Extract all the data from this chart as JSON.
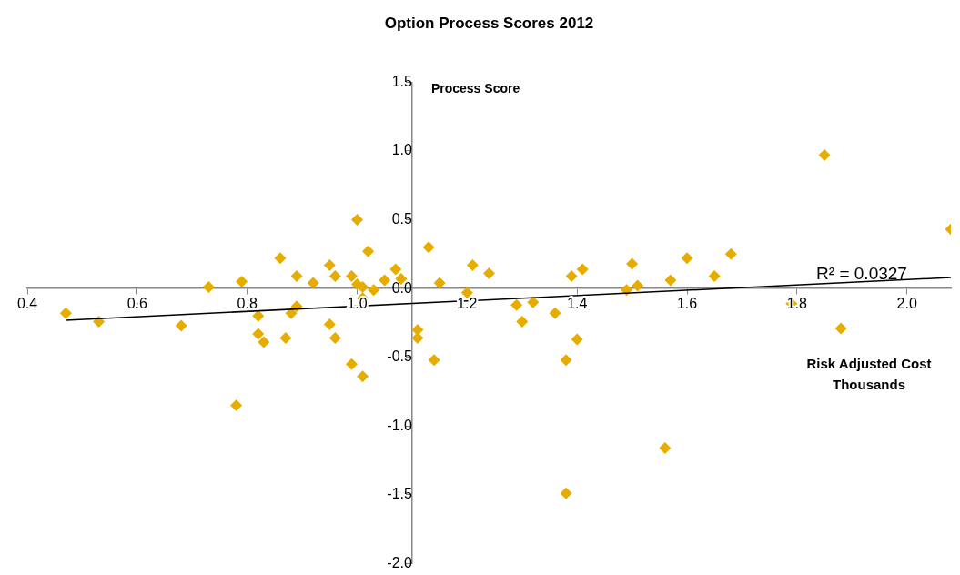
{
  "chart_data": {
    "type": "scatter",
    "title": "Option Process Scores 2012",
    "xlabel": "Risk Adjusted Cost Thousands",
    "ylabel": "Process Score",
    "xlim": [
      0.4,
      2.08
    ],
    "xticks": [
      0.4,
      0.6,
      0.8,
      {
        "value": 1.0,
        "label": "1.0"
      },
      1.2,
      1.4,
      1.6,
      1.8,
      {
        "value": 2.0,
        "label": "2.0"
      }
    ],
    "ylim": [
      -2.0,
      1.5
    ],
    "yticks": [
      {
        "value": -2.0,
        "label": "-2.0"
      },
      -1.5,
      {
        "value": -1.0,
        "label": "-1.0"
      },
      -0.5,
      {
        "value": 0.0,
        "label": "0.0"
      },
      0.5,
      {
        "value": 1.0,
        "label": "1.0"
      },
      1.5
    ],
    "grid": false,
    "legend": false,
    "annotations": [
      "R² = 0.0327"
    ],
    "series": [
      {
        "type": "scatter",
        "color": "#e6ad00",
        "marker": "diamond",
        "x": [
          0.47,
          0.53,
          0.61,
          0.68,
          0.73,
          0.79,
          0.78,
          0.82,
          0.82,
          0.83,
          0.86,
          0.87,
          0.88,
          0.89,
          0.89,
          0.92,
          0.95,
          0.95,
          0.96,
          0.96,
          0.99,
          1.0,
          0.99,
          1.0,
          1.01,
          1.01,
          1.01,
          1.02,
          1.03,
          1.05,
          1.07,
          1.08,
          1.13,
          1.15,
          1.11,
          1.11,
          1.14,
          1.2,
          1.21,
          1.24,
          1.3,
          1.32,
          1.29,
          1.36,
          1.39,
          1.41,
          1.4,
          1.38,
          1.38,
          1.49,
          1.51,
          1.5,
          1.56,
          1.6,
          1.57,
          1.65,
          1.68,
          1.79,
          1.85,
          1.88,
          2.08
        ],
        "values": [
          -0.18,
          -0.24,
          -0.11,
          -0.27,
          0.01,
          0.05,
          -0.85,
          -0.2,
          -0.33,
          -0.39,
          0.22,
          -0.36,
          -0.18,
          0.09,
          -0.13,
          0.04,
          -0.26,
          0.17,
          0.09,
          -0.36,
          -0.55,
          0.5,
          0.09,
          0.03,
          0.01,
          -0.07,
          -0.64,
          0.27,
          -0.01,
          0.06,
          0.14,
          0.07,
          0.3,
          0.04,
          -0.3,
          -0.36,
          -0.52,
          -0.03,
          0.17,
          0.11,
          -0.24,
          -0.1,
          -0.12,
          -0.18,
          0.09,
          0.14,
          -0.37,
          -0.52,
          -1.49,
          -0.01,
          0.02,
          0.18,
          -1.16,
          0.22,
          0.06,
          0.09,
          0.25,
          -0.11,
          0.97,
          -0.29,
          0.43
        ]
      },
      {
        "type": "line",
        "color": "#000000",
        "marker": "none",
        "line_style": "solid",
        "x": [
          0.47,
          2.08
        ],
        "values": [
          -0.23,
          0.08
        ]
      }
    ]
  }
}
